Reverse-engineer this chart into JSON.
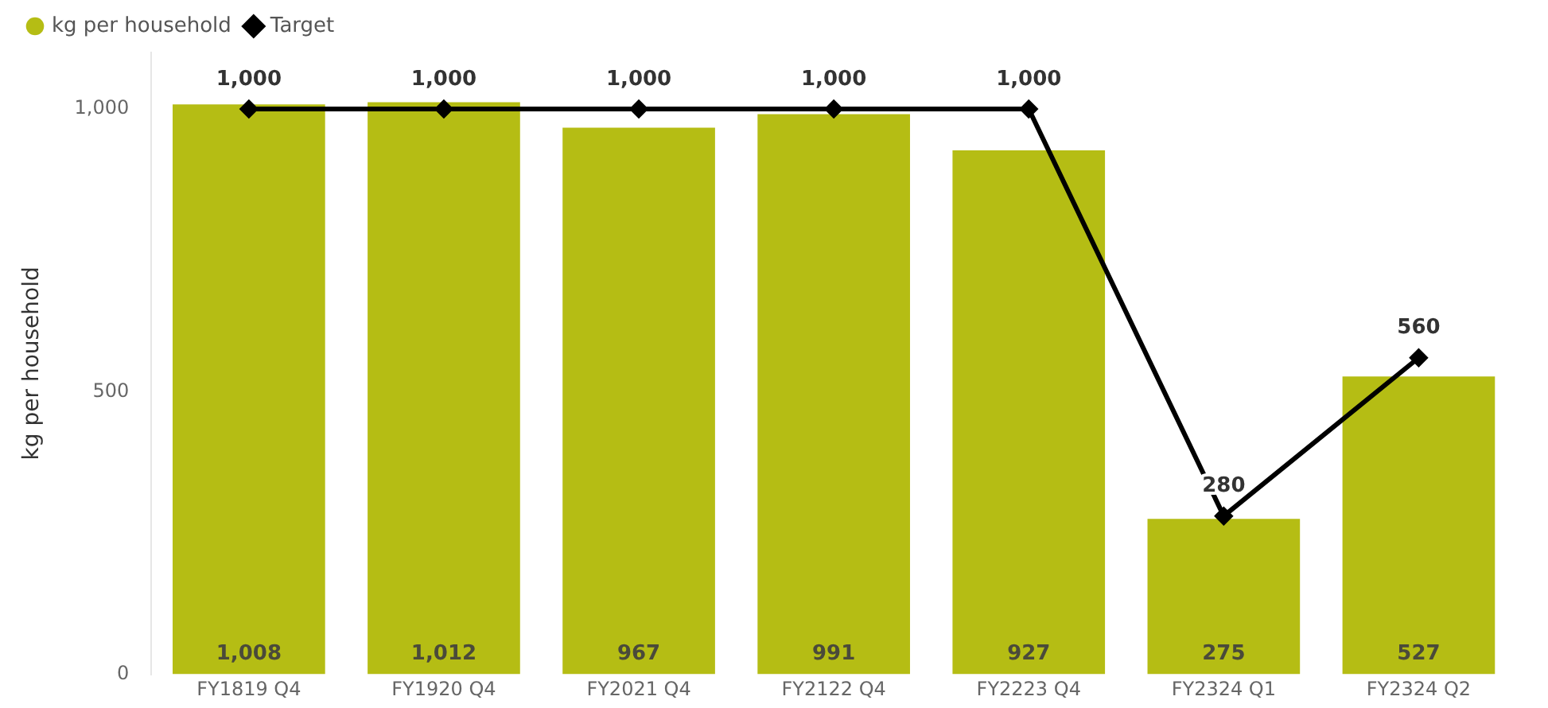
{
  "chart_data": {
    "type": "bar",
    "ylabel": "kg per household",
    "categories": [
      "FY1819 Q4",
      "FY1920 Q4",
      "FY2021 Q4",
      "FY2122 Q4",
      "FY2223 Q4",
      "FY2324 Q1",
      "FY2324 Q2"
    ],
    "series": [
      {
        "name": "kg per household",
        "color": "#b5bd14",
        "values": [
          1008,
          1012,
          967,
          991,
          927,
          275,
          527
        ],
        "value_labels": [
          "1,008",
          "1,012",
          "967",
          "991",
          "927",
          "275",
          "527"
        ]
      },
      {
        "name": "Target",
        "type": "line",
        "color": "#000000",
        "marker": "diamond",
        "values": [
          1000,
          1000,
          1000,
          1000,
          1000,
          280,
          560
        ],
        "value_labels": [
          "1,000",
          "1,000",
          "1,000",
          "1,000",
          "1,000",
          "280",
          "560"
        ]
      }
    ],
    "ylim": [
      0,
      1100
    ],
    "yticks": [
      0,
      {
        "value": 500,
        "label": "500"
      },
      {
        "value": 1000,
        "label": "1,000"
      }
    ],
    "legend": "top left"
  }
}
